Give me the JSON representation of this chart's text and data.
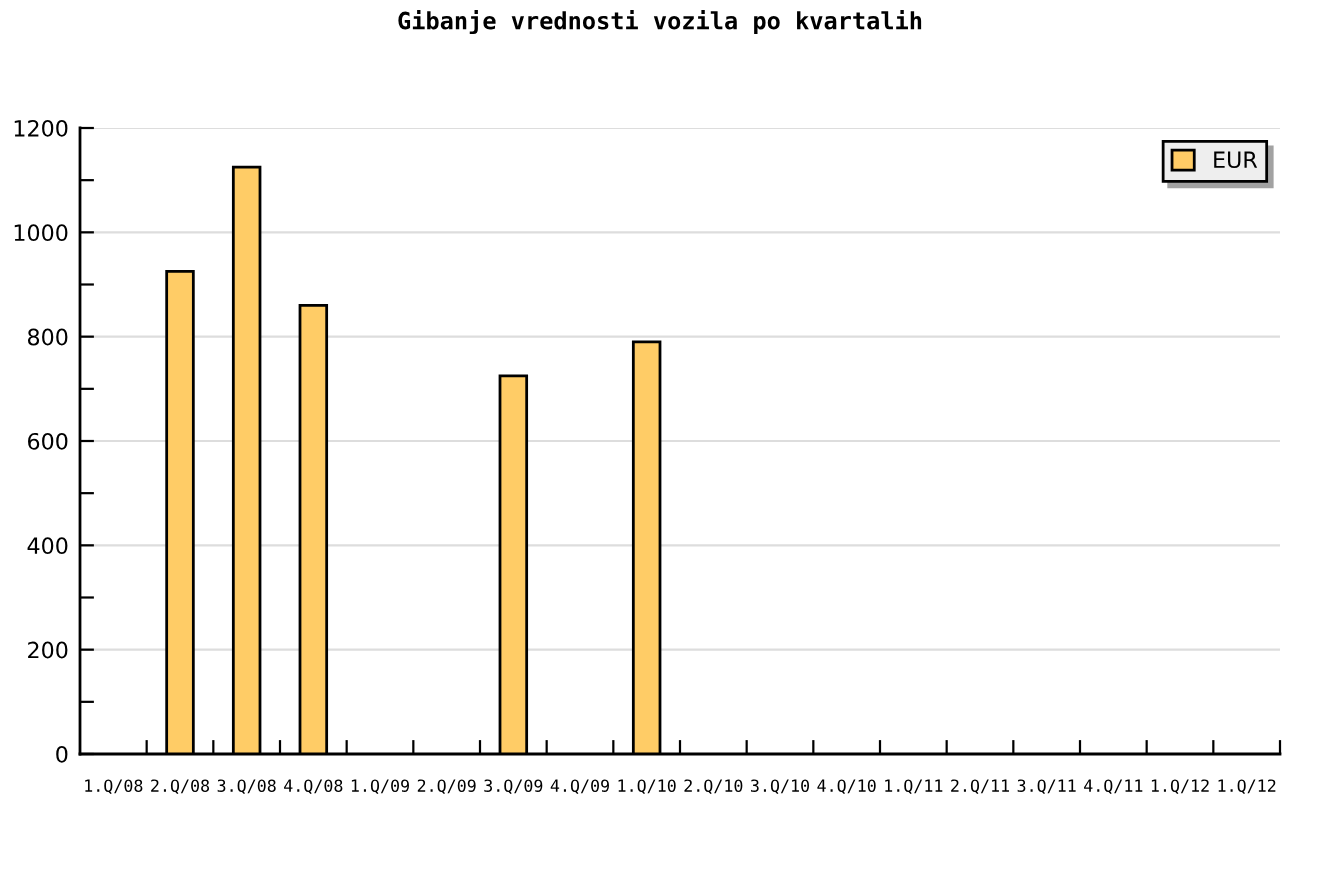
{
  "chart_data": {
    "type": "bar",
    "title": "Gibanje vrednosti vozila po kvartalih",
    "categories": [
      "1.Q/08",
      "2.Q/08",
      "3.Q/08",
      "4.Q/08",
      "1.Q/09",
      "2.Q/09",
      "3.Q/09",
      "4.Q/09",
      "1.Q/10",
      "2.Q/10",
      "3.Q/10",
      "4.Q/10",
      "1.Q/11",
      "2.Q/11",
      "3.Q/11",
      "4.Q/11",
      "1.Q/12",
      "1.Q/12"
    ],
    "series": [
      {
        "name": "EUR",
        "color": "#ffcc66",
        "values": [
          null,
          925,
          1125,
          860,
          null,
          null,
          725,
          null,
          790,
          null,
          null,
          null,
          null,
          null,
          null,
          null,
          null,
          null
        ]
      }
    ],
    "ylim": [
      0,
      1200
    ],
    "yticks": [
      0,
      200,
      400,
      600,
      800,
      1000,
      1200
    ],
    "grid": "y",
    "legend": "top right"
  }
}
